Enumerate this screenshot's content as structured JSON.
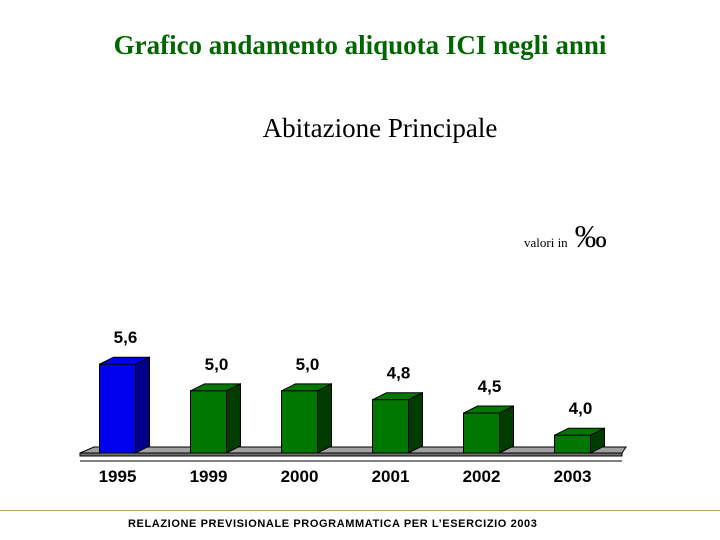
{
  "chart_data": {
    "type": "bar",
    "title": "Grafico andamento aliquota ICI negli anni",
    "subtitle": "Abitazione Principale",
    "categories": [
      "1995",
      "1999",
      "2000",
      "2001",
      "2002",
      "2003"
    ],
    "values": [
      5.6,
      5.0,
      5.0,
      4.8,
      4.5,
      4.0
    ],
    "value_labels": [
      "5,6",
      "5,0",
      "5,0",
      "4,8",
      "4,5",
      "4,0"
    ],
    "unit_prefix": "valori in",
    "unit_symbol": "‰",
    "xlabel": "",
    "ylabel": "",
    "grid": false,
    "bar_colors": [
      "#0000ee",
      "#007700",
      "#007700",
      "#007700",
      "#007700",
      "#007700"
    ],
    "bar_side_colors": [
      "#00008a",
      "#003b00",
      "#003b00",
      "#003b00",
      "#003b00",
      "#003b00"
    ]
  },
  "footer": {
    "text": "RELAZIONE PREVISIONALE PROGRAMMATICA PER L’ESERCIZIO 2003"
  }
}
